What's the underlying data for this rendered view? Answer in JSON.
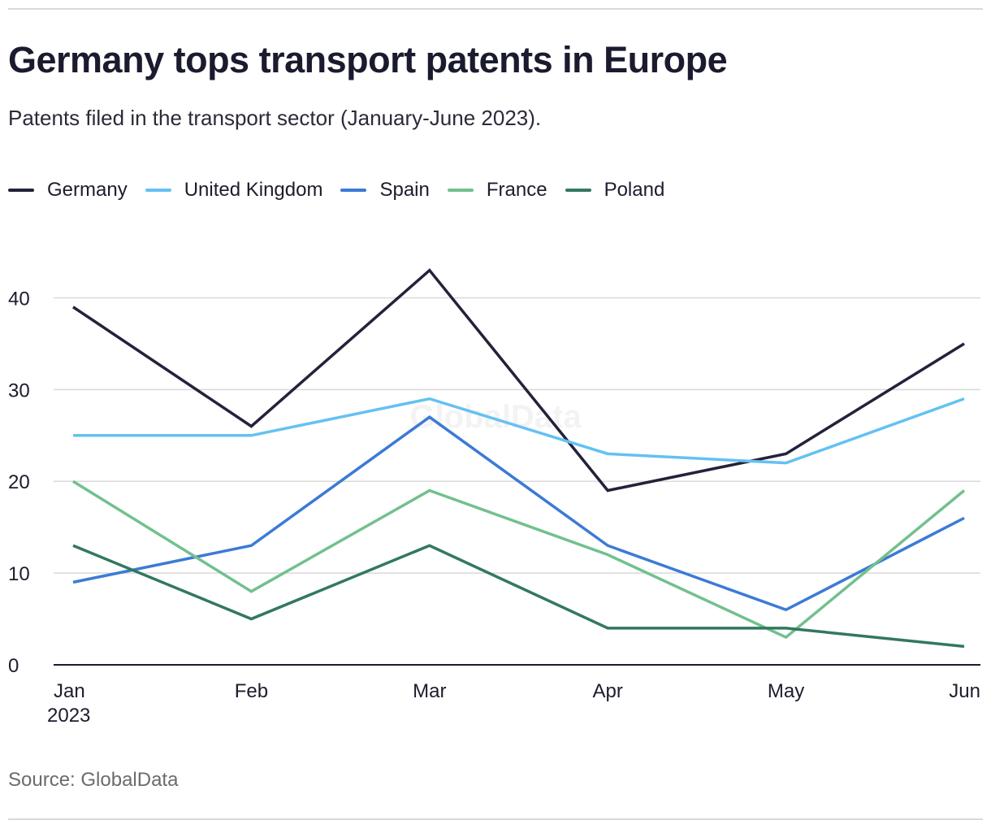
{
  "title": "Germany tops transport patents in Europe",
  "subtitle": "Patents filed in the transport sector (January-June 2023).",
  "source": "Source: GlobalData",
  "watermark": "GlobalData",
  "colors": {
    "Germany": "#22223b",
    "United Kingdom": "#64c1f2",
    "Spain": "#3c7ad6",
    "France": "#72c08e",
    "Poland": "#32785f",
    "grid": "#d9d9d9",
    "axis": "#1c1c2e"
  },
  "chart_data": {
    "type": "line",
    "title": "Germany tops transport patents in Europe",
    "subtitle": "Patents filed in the transport sector (January-June 2023).",
    "x": [
      "Jan",
      "Feb",
      "Mar",
      "Apr",
      "May",
      "Jun"
    ],
    "x_sublabels": [
      "2023",
      "",
      "",
      "",
      "",
      ""
    ],
    "xlabel": "",
    "ylabel": "",
    "ylim": [
      0,
      45
    ],
    "yticks": [
      0,
      10,
      20,
      30,
      40
    ],
    "grid": true,
    "legend_position": "top-left",
    "series": [
      {
        "name": "Germany",
        "values": [
          39,
          26,
          43,
          19,
          23,
          35
        ]
      },
      {
        "name": "United Kingdom",
        "values": [
          25,
          25,
          29,
          23,
          22,
          29
        ]
      },
      {
        "name": "Spain",
        "values": [
          9,
          13,
          27,
          13,
          6,
          16
        ]
      },
      {
        "name": "France",
        "values": [
          20,
          8,
          19,
          12,
          3,
          19
        ]
      },
      {
        "name": "Poland",
        "values": [
          13,
          5,
          13,
          4,
          4,
          2
        ]
      }
    ]
  }
}
